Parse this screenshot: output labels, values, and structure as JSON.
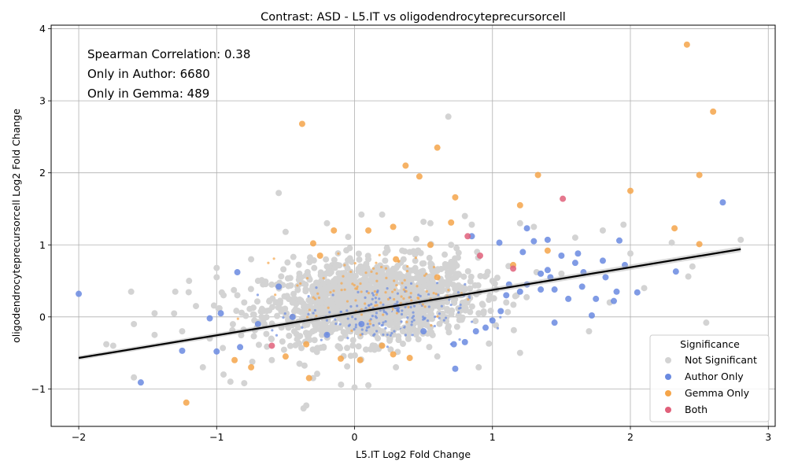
{
  "chart_data": {
    "type": "scatter",
    "title": "Contrast: ASD - L5.IT vs oligodendrocyteprecursorcell",
    "xlabel": "L5.IT Log2 Fold Change",
    "ylabel": "oligodendrocyteprecursorcell Log2 Fold Change",
    "xlim": [
      -2.2,
      3.05
    ],
    "ylim": [
      -1.52,
      4.05
    ],
    "xticks": [
      -2,
      -1,
      0,
      1,
      2,
      3
    ],
    "yticks": [
      -1,
      0,
      1,
      2,
      3,
      4
    ],
    "grid": true,
    "annotations": [
      "Spearman Correlation: 0.38",
      "Only in Author: 6680",
      "Only in Gemma: 489"
    ],
    "legend": {
      "title": "Significance",
      "placement": "lower-right",
      "entries": [
        "Not Significant",
        "Author Only",
        "Gemma Only",
        "Both"
      ]
    },
    "colors": {
      "Not Significant": "#d3d3d3",
      "Author Only": "#6a8ae0",
      "Gemma Only": "#f5a54a",
      "Both": "#e0607a",
      "fit": "#000000"
    },
    "fit_line": {
      "x": [
        -2.0,
        2.8
      ],
      "y": [
        -0.57,
        0.94
      ]
    },
    "series": [
      {
        "name": "Not Significant",
        "points": [
          [
            -1.62,
            0.35
          ],
          [
            -1.6,
            -0.1
          ],
          [
            -1.6,
            -0.84
          ],
          [
            -1.45,
            0.05
          ],
          [
            -1.45,
            -0.25
          ],
          [
            -1.3,
            0.35
          ],
          [
            -1.2,
            0.5
          ],
          [
            -1.15,
            0.15
          ],
          [
            -1.1,
            -0.7
          ],
          [
            -1.05,
            -0.3
          ],
          [
            -1.0,
            0.68
          ],
          [
            -1.0,
            0.55
          ],
          [
            -0.95,
            0.3
          ],
          [
            -0.95,
            -0.8
          ],
          [
            -0.9,
            -0.9
          ],
          [
            -0.85,
            0.3
          ],
          [
            -0.8,
            -0.92
          ],
          [
            -0.75,
            0.8
          ],
          [
            -0.7,
            0.5
          ],
          [
            -0.55,
            1.72
          ],
          [
            -0.5,
            1.18
          ],
          [
            -0.35,
            -1.23
          ],
          [
            -0.37,
            -1.27
          ],
          [
            -0.2,
            1.3
          ],
          [
            0.05,
            1.42
          ],
          [
            0.0,
            -0.98
          ],
          [
            0.1,
            -0.95
          ],
          [
            0.2,
            1.42
          ],
          [
            0.5,
            1.32
          ],
          [
            0.55,
            1.3
          ],
          [
            0.68,
            2.78
          ],
          [
            0.7,
            1.0
          ],
          [
            0.8,
            1.4
          ],
          [
            0.85,
            1.28
          ],
          [
            1.2,
            1.3
          ],
          [
            1.3,
            1.25
          ],
          [
            1.6,
            1.1
          ],
          [
            1.8,
            1.2
          ],
          [
            1.95,
            1.28
          ],
          [
            2.3,
            1.03
          ],
          [
            2.42,
            0.56
          ],
          [
            2.45,
            0.7
          ],
          [
            2.55,
            -0.08
          ],
          [
            2.8,
            1.07
          ],
          [
            2.0,
            0.88
          ],
          [
            1.7,
            -0.2
          ],
          [
            1.5,
            0.6
          ],
          [
            1.2,
            -0.5
          ],
          [
            0.9,
            -0.7
          ],
          [
            0.6,
            -0.55
          ],
          [
            0.3,
            -0.7
          ],
          [
            -0.3,
            -0.85
          ],
          [
            -0.6,
            -0.6
          ],
          [
            -0.8,
            0.2
          ],
          [
            -0.4,
            0.6
          ],
          [
            -0.2,
            0.7
          ],
          [
            0.1,
            0.8
          ],
          [
            0.4,
            0.9
          ],
          [
            0.7,
            0.65
          ],
          [
            1.0,
            0.5
          ],
          [
            -1.8,
            -0.38
          ],
          [
            -1.75,
            -0.4
          ],
          [
            -1.25,
            -0.2
          ],
          [
            1.85,
            0.2
          ],
          [
            2.1,
            0.4
          ],
          [
            -0.45,
            0.2
          ],
          [
            -0.1,
            -0.3
          ],
          [
            0.25,
            0.1
          ],
          [
            0.6,
            0.2
          ],
          [
            0.9,
            0.05
          ],
          [
            -0.7,
            -0.1
          ],
          [
            0.0,
            0.3
          ],
          [
            0.35,
            -0.2
          ],
          [
            1.1,
            0.2
          ],
          [
            -0.3,
            0.35
          ]
        ]
      },
      {
        "name": "Author Only",
        "points": [
          [
            -2.0,
            0.32
          ],
          [
            -1.55,
            -0.91
          ],
          [
            -1.25,
            -0.47
          ],
          [
            -1.05,
            -0.02
          ],
          [
            -1.0,
            -0.48
          ],
          [
            -0.97,
            0.05
          ],
          [
            -0.85,
            0.62
          ],
          [
            -0.83,
            -0.42
          ],
          [
            -0.7,
            -0.1
          ],
          [
            -0.55,
            0.42
          ],
          [
            -0.45,
            0.0
          ],
          [
            -0.2,
            -0.25
          ],
          [
            0.05,
            -0.1
          ],
          [
            0.3,
            0.15
          ],
          [
            0.5,
            -0.2
          ],
          [
            0.72,
            -0.38
          ],
          [
            0.73,
            -0.72
          ],
          [
            0.8,
            -0.35
          ],
          [
            0.88,
            -0.2
          ],
          [
            0.95,
            -0.15
          ],
          [
            1.0,
            -0.05
          ],
          [
            1.05,
            1.03
          ],
          [
            1.06,
            0.08
          ],
          [
            1.1,
            0.3
          ],
          [
            1.12,
            0.45
          ],
          [
            1.2,
            0.35
          ],
          [
            1.22,
            0.9
          ],
          [
            1.25,
            1.23
          ],
          [
            1.25,
            0.45
          ],
          [
            1.3,
            1.05
          ],
          [
            1.35,
            0.6
          ],
          [
            1.4,
            1.07
          ],
          [
            1.4,
            0.65
          ],
          [
            1.42,
            0.55
          ],
          [
            1.45,
            0.38
          ],
          [
            1.45,
            -0.08
          ],
          [
            1.5,
            0.85
          ],
          [
            1.55,
            0.25
          ],
          [
            1.6,
            0.75
          ],
          [
            1.62,
            0.88
          ],
          [
            1.65,
            0.42
          ],
          [
            1.66,
            0.62
          ],
          [
            1.72,
            0.02
          ],
          [
            1.75,
            0.25
          ],
          [
            1.8,
            0.78
          ],
          [
            1.82,
            0.55
          ],
          [
            1.88,
            0.22
          ],
          [
            1.9,
            0.35
          ],
          [
            1.92,
            1.06
          ],
          [
            1.96,
            0.72
          ],
          [
            2.05,
            0.34
          ],
          [
            2.33,
            0.63
          ],
          [
            2.67,
            1.59
          ],
          [
            0.85,
            1.12
          ],
          [
            1.35,
            0.38
          ]
        ]
      },
      {
        "name": "Gemma Only",
        "points": [
          [
            2.41,
            3.78
          ],
          [
            2.6,
            2.85
          ],
          [
            -0.38,
            2.68
          ],
          [
            0.6,
            2.35
          ],
          [
            0.37,
            2.1
          ],
          [
            0.47,
            1.95
          ],
          [
            1.33,
            1.97
          ],
          [
            2.5,
            1.97
          ],
          [
            2.0,
            1.75
          ],
          [
            0.73,
            1.66
          ],
          [
            1.2,
            1.55
          ],
          [
            0.7,
            1.31
          ],
          [
            0.28,
            1.25
          ],
          [
            0.1,
            1.2
          ],
          [
            -0.15,
            1.2
          ],
          [
            2.32,
            1.23
          ],
          [
            2.5,
            1.01
          ],
          [
            0.55,
            1.0
          ],
          [
            -0.3,
            1.02
          ],
          [
            1.4,
            0.92
          ],
          [
            1.15,
            0.72
          ],
          [
            0.6,
            0.55
          ],
          [
            0.3,
            0.8
          ],
          [
            -0.25,
            0.85
          ],
          [
            -0.35,
            -0.38
          ],
          [
            -0.75,
            -0.7
          ],
          [
            -0.87,
            -0.6
          ],
          [
            -1.22,
            -1.19
          ],
          [
            -0.33,
            -0.85
          ],
          [
            -0.1,
            -0.58
          ],
          [
            0.04,
            -0.6
          ],
          [
            0.4,
            -0.57
          ],
          [
            0.28,
            -0.52
          ],
          [
            0.2,
            -0.4
          ],
          [
            -0.5,
            -0.55
          ]
        ]
      },
      {
        "name": "Both",
        "points": [
          [
            1.51,
            1.64
          ],
          [
            0.91,
            0.85
          ],
          [
            0.82,
            1.12
          ],
          [
            1.15,
            0.67
          ],
          [
            -0.6,
            -0.4
          ]
        ]
      }
    ]
  }
}
